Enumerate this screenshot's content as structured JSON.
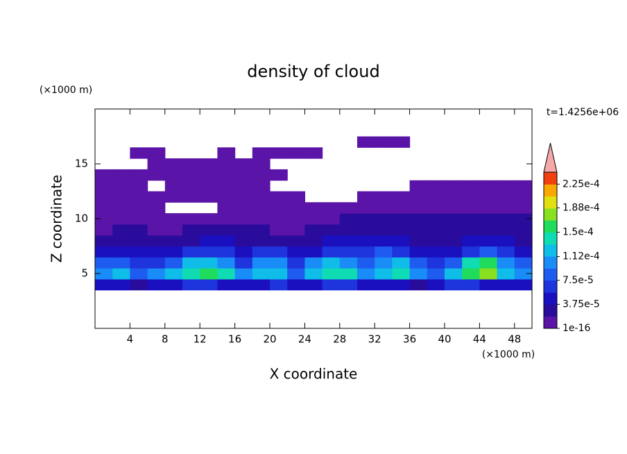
{
  "chart_data": {
    "type": "contour",
    "title": "density of cloud",
    "xlabel": "X coordinate",
    "ylabel": "Z coordinate",
    "x_unit": "(×1000 m)",
    "y_unit": "(×1000 m)",
    "time_label": "t=1.4256e+06",
    "xlim": [
      0,
      50
    ],
    "ylim": [
      0,
      20
    ],
    "xticks": [
      4,
      8,
      12,
      16,
      20,
      24,
      28,
      32,
      36,
      40,
      44,
      48
    ],
    "yticks": [
      5,
      10,
      15
    ],
    "x": [
      1,
      3,
      5,
      7,
      9,
      11,
      13,
      15,
      17,
      19,
      21,
      23,
      25,
      27,
      29,
      31,
      33,
      35,
      37,
      39,
      41,
      43,
      45,
      47,
      49
    ],
    "y": [
      4,
      5,
      6,
      7,
      8,
      9,
      10,
      11,
      12,
      13,
      14,
      15,
      16,
      17
    ],
    "z": [
      [
        4e-05,
        4e-05,
        3e-05,
        4e-05,
        5e-05,
        6e-05,
        6e-05,
        5e-05,
        4e-05,
        5e-05,
        6e-05,
        4e-05,
        5e-05,
        6e-05,
        6e-05,
        5e-05,
        4e-05,
        4e-05,
        3e-05,
        4e-05,
        6e-05,
        6e-05,
        5e-05,
        4e-05,
        5e-05
      ],
      [
        0.00011,
        0.00012,
        9e-05,
        0.0001,
        0.00013,
        0.000145,
        0.000155,
        0.00014,
        0.0001,
        0.000125,
        0.00013,
        9e-05,
        0.00012,
        0.000135,
        0.00014,
        0.00011,
        0.00012,
        0.000135,
        0.00011,
        9e-05,
        0.00012,
        0.00016,
        0.00017,
        0.00013,
        0.00011
      ],
      [
        8e-05,
        9e-05,
        6e-05,
        7e-05,
        9e-05,
        0.00012,
        0.00013,
        0.00011,
        7e-05,
        0.00011,
        0.0001,
        6e-05,
        0.00011,
        0.00012,
        0.00011,
        9e-05,
        0.00011,
        0.000125,
        9e-05,
        7e-05,
        8e-05,
        0.00015,
        0.00016,
        0.0001,
        8e-05
      ],
      [
        5e-05,
        5e-05,
        4e-05,
        4e-05,
        5e-05,
        6e-05,
        7e-05,
        6e-05,
        5e-05,
        6e-05,
        6e-05,
        4e-05,
        5e-05,
        6e-05,
        6e-05,
        7e-05,
        8e-05,
        7e-05,
        5e-05,
        5e-05,
        5e-05,
        7e-05,
        8e-05,
        6e-05,
        5e-05
      ],
      [
        3e-05,
        3e-05,
        3e-05,
        3e-05,
        3e-05,
        3e-05,
        4e-05,
        4e-05,
        3e-05,
        3e-05,
        3e-05,
        3e-05,
        3e-05,
        4e-05,
        4e-05,
        5e-05,
        5e-05,
        4e-05,
        3e-05,
        3e-05,
        3e-05,
        4e-05,
        4e-05,
        4e-05,
        3e-05
      ],
      [
        1.5e-05,
        2e-05,
        2e-05,
        1.5e-05,
        1.5e-05,
        2e-05,
        2e-05,
        2e-05,
        2e-05,
        2e-05,
        1.5e-05,
        1.5e-05,
        2e-05,
        2e-05,
        2.5e-05,
        3e-05,
        2.5e-05,
        2.5e-05,
        2e-05,
        2.5e-05,
        2e-05,
        2.5e-05,
        2.5e-05,
        3e-05,
        2.5e-05
      ],
      [
        1e-05,
        1e-05,
        1e-05,
        1e-05,
        1e-05,
        1e-05,
        1e-05,
        1e-05,
        1e-05,
        1e-05,
        1e-05,
        1e-05,
        1e-05,
        1.5e-05,
        2e-05,
        2e-05,
        2e-05,
        2e-05,
        2e-05,
        2e-05,
        2e-05,
        2e-05,
        2e-05,
        2e-05,
        2e-05
      ],
      [
        5e-06,
        5e-06,
        5e-06,
        5e-06,
        null,
        null,
        null,
        5e-06,
        5e-06,
        5e-06,
        5e-06,
        5e-06,
        5e-06,
        5e-06,
        5e-06,
        1e-05,
        1e-05,
        1e-05,
        1e-05,
        1e-05,
        1e-05,
        1e-05,
        1e-05,
        1e-05,
        1e-05
      ],
      [
        5e-06,
        5e-06,
        5e-06,
        5e-06,
        5e-06,
        5e-06,
        5e-06,
        5e-06,
        5e-06,
        5e-06,
        5e-06,
        5e-06,
        null,
        null,
        null,
        5e-06,
        5e-06,
        5e-06,
        5e-06,
        1e-05,
        1e-05,
        1e-05,
        1e-05,
        1e-05,
        1e-05
      ],
      [
        5e-06,
        5e-06,
        5e-06,
        null,
        5e-06,
        5e-06,
        5e-06,
        5e-06,
        5e-06,
        5e-06,
        null,
        null,
        null,
        null,
        null,
        null,
        null,
        null,
        5e-06,
        5e-06,
        5e-06,
        5e-06,
        5e-06,
        5e-06,
        5e-06
      ],
      [
        5e-06,
        5e-06,
        5e-06,
        5e-06,
        5e-06,
        5e-06,
        5e-06,
        5e-06,
        5e-06,
        5e-06,
        5e-06,
        null,
        null,
        null,
        null,
        null,
        null,
        null,
        null,
        null,
        null,
        null,
        null,
        null,
        null
      ],
      [
        null,
        null,
        null,
        5e-06,
        5e-06,
        5e-06,
        5e-06,
        5e-06,
        5e-06,
        5e-06,
        null,
        null,
        null,
        null,
        null,
        null,
        null,
        null,
        null,
        null,
        null,
        null,
        null,
        null,
        null
      ],
      [
        null,
        null,
        5e-06,
        5e-06,
        null,
        null,
        null,
        5e-06,
        null,
        5e-06,
        5e-06,
        5e-06,
        5e-06,
        null,
        null,
        null,
        null,
        null,
        null,
        null,
        null,
        null,
        null,
        null,
        null
      ],
      [
        null,
        null,
        null,
        null,
        null,
        null,
        null,
        null,
        null,
        null,
        null,
        null,
        null,
        null,
        null,
        5e-06,
        5e-06,
        5e-06,
        null,
        null,
        null,
        null,
        null,
        null,
        null
      ]
    ],
    "colorbar": {
      "range": [
        1e-16,
        0.00024375
      ],
      "ticks": [
        {
          "value": 1e-16,
          "label": "1e-16"
        },
        {
          "value": 3.75e-05,
          "label": "3.75e-5"
        },
        {
          "value": 7.5e-05,
          "label": "7.5e-5"
        },
        {
          "value": 0.000112,
          "label": "1.12e-4"
        },
        {
          "value": 0.00015,
          "label": "1.5e-4"
        },
        {
          "value": 0.000188,
          "label": "1.88e-4"
        },
        {
          "value": 0.000225,
          "label": "2.25e-4"
        }
      ],
      "colors": [
        "#5a14a8",
        "#2a0c9c",
        "#1a10c0",
        "#1e34dc",
        "#1e5cf0",
        "#1a8cf8",
        "#10bce8",
        "#10dcb4",
        "#20dc5c",
        "#88e020",
        "#e0e010",
        "#f8a800",
        "#f04010"
      ],
      "over_color": "#f4a8a8"
    }
  }
}
